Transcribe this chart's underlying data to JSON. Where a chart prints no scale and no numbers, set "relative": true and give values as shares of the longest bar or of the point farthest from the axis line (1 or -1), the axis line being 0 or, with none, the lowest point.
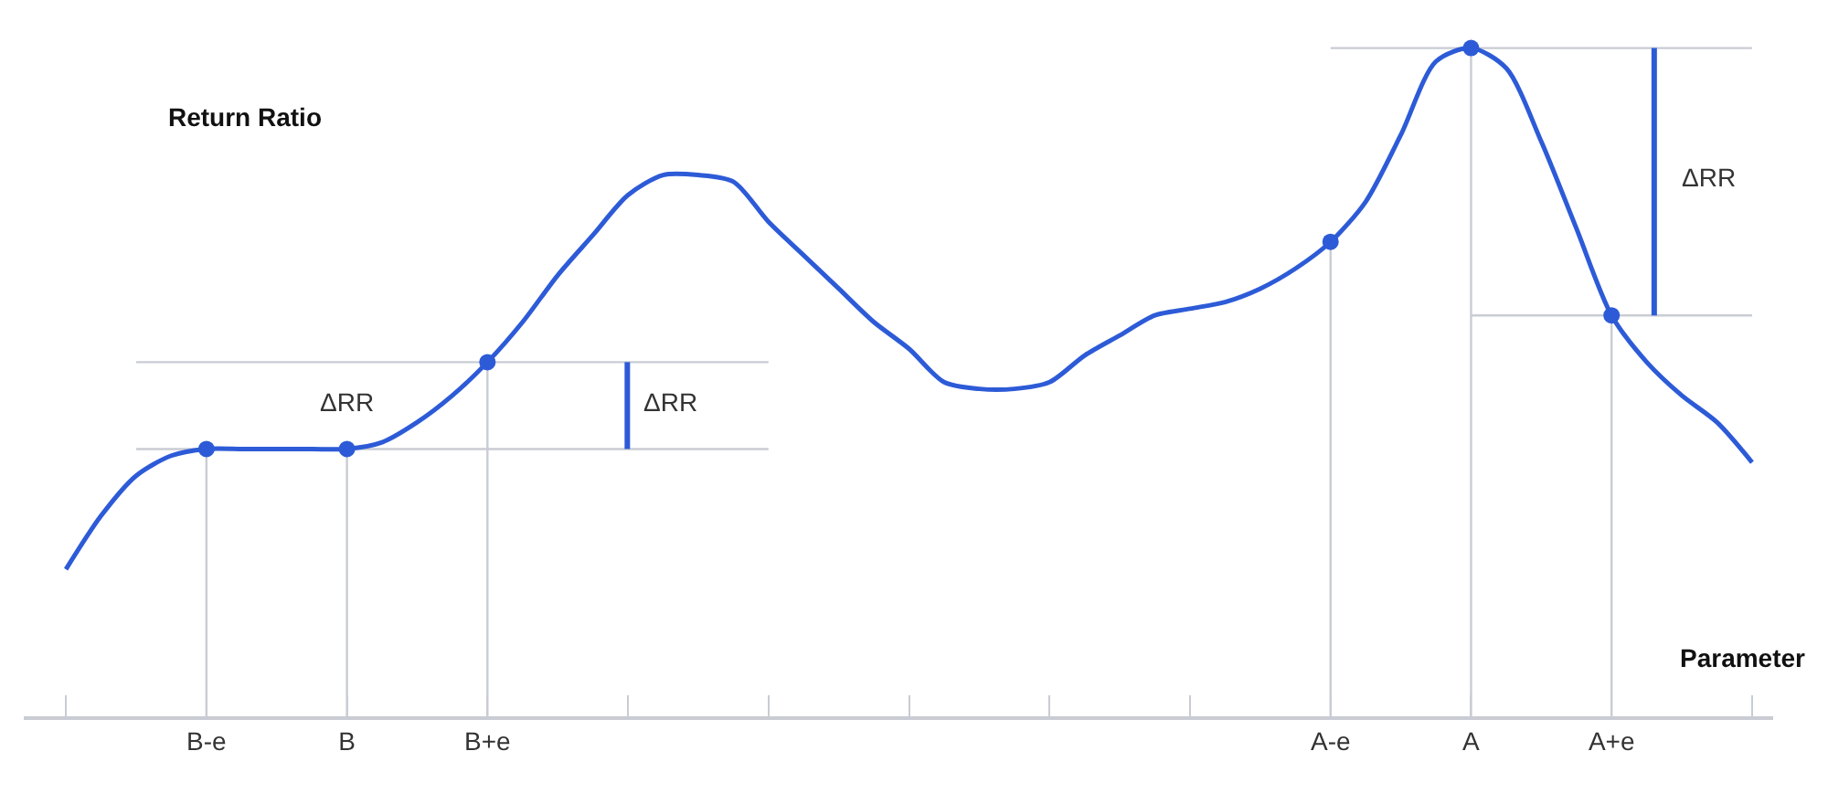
{
  "chart_data": {
    "type": "line",
    "relative": true,
    "xlabel": "Parameter",
    "ylabel": "Return Ratio",
    "categories": [
      null,
      null,
      null,
      null,
      "B-e",
      null,
      null,
      null,
      "B",
      null,
      null,
      null,
      "B+e",
      null,
      null,
      null,
      null,
      null,
      null,
      null,
      null,
      null,
      null,
      null,
      null,
      null,
      null,
      null,
      null,
      null,
      null,
      null,
      null,
      null,
      null,
      null,
      "A-e",
      null,
      null,
      null,
      "A",
      null,
      null,
      null,
      "A+e",
      null,
      null,
      null,
      null
    ],
    "series": [
      {
        "type": "line",
        "color": "#c9ccd3",
        "values": [
          null,
          null,
          0.53,
          0.53,
          0.53,
          0.53,
          0.53,
          0.53,
          0.53,
          0.53,
          0.53,
          0.53,
          0.53,
          0.53,
          0.53,
          0.53,
          0.53,
          0.53,
          0.53,
          0.53,
          0.53,
          null,
          null,
          null,
          null,
          null,
          null,
          null,
          null,
          null,
          null,
          null,
          null,
          null,
          null,
          null,
          1,
          1,
          1,
          1,
          1,
          1,
          1,
          1,
          1,
          1,
          1,
          1,
          1
        ]
      },
      {
        "type": "line",
        "color": "#c9ccd3",
        "values": [
          null,
          null,
          0.4,
          0.4,
          0.4,
          0.4,
          0.4,
          0.4,
          0.4,
          0.4,
          0.4,
          0.4,
          0.4,
          0.4,
          0.4,
          0.4,
          0.4,
          0.4,
          0.4,
          0.4,
          0.4,
          null,
          null,
          null,
          null,
          null,
          null,
          null,
          null,
          null,
          null,
          null,
          null,
          null,
          null,
          null,
          null,
          null,
          null,
          null,
          0.6,
          0.6,
          0.6,
          0.6,
          0.6,
          0.6,
          0.6,
          0.6,
          0.6
        ]
      },
      {
        "color": "#2d5bd7",
        "values": [
          0.22,
          0.3,
          0.36,
          0.39,
          0.4,
          0.4,
          0.4,
          0.4,
          0.4,
          0.41,
          0.44,
          0.48,
          0.53,
          0.59,
          0.66,
          0.72,
          0.78,
          0.81,
          0.81,
          0.8,
          0.74,
          0.69,
          0.64,
          0.59,
          0.55,
          0.5,
          0.49,
          0.49,
          0.5,
          0.54,
          0.57,
          0.6,
          0.61,
          0.62,
          0.64,
          0.67,
          0.71,
          0.77,
          0.87,
          0.98,
          1,
          0.97,
          0.86,
          0.73,
          0.6,
          0.53,
          0.48,
          0.44,
          0.38
        ]
      },
      {
        "type": "lollipop",
        "marker": "circle",
        "color": "#2d5bd7",
        "values": [
          null,
          null,
          null,
          null,
          0.4,
          null,
          null,
          null,
          0.4,
          null,
          null,
          null,
          0.53,
          null,
          null,
          null,
          null,
          null,
          null,
          null,
          null,
          null,
          null,
          null,
          null,
          null,
          null,
          null,
          null,
          null,
          null,
          null,
          null,
          null,
          null,
          null,
          0.71,
          null,
          null,
          null,
          1,
          null,
          null,
          null,
          0.6,
          null,
          null,
          null,
          null
        ]
      }
    ],
    "annotations": [
      "ΔRR",
      "ΔRR",
      "ΔRR"
    ]
  }
}
